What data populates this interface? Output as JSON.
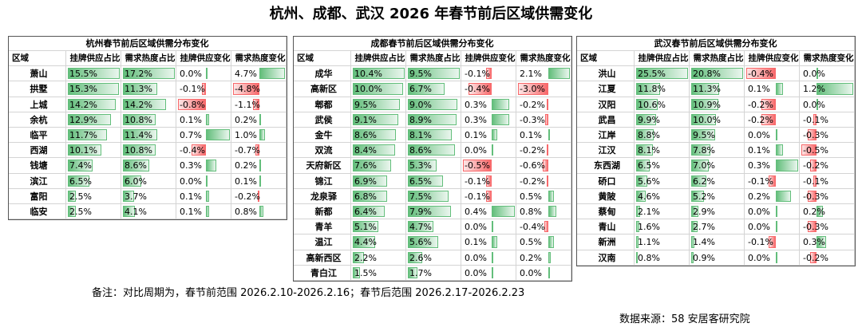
{
  "title": "杭州、成都、武汉 2026 年春节前后区域供需变化",
  "tables": [
    {
      "title": "杭州春节前后区域供需分布变化",
      "headers": [
        "区域",
        "挂牌供应占比",
        "需求热度占比",
        "挂牌供应变化",
        "需求热度变化"
      ],
      "rows": [
        [
          "萧山",
          "15.5%",
          "17.2%",
          "0.0%",
          "4.7%"
        ],
        [
          "拱墅",
          "15.3%",
          "11.3%",
          "-0.1%",
          "-4.8%"
        ],
        [
          "上城",
          "14.2%",
          "14.2%",
          "-0.8%",
          "-1.1%"
        ],
        [
          "余杭",
          "12.9%",
          "10.8%",
          "0.1%",
          "0.2%"
        ],
        [
          "临平",
          "11.7%",
          "11.4%",
          "0.7%",
          "1.0%"
        ],
        [
          "西湖",
          "10.1%",
          "10.8%",
          "-0.4%",
          "-0.7%"
        ],
        [
          "钱塘",
          "7.4%",
          "8.6%",
          "0.3%",
          "0.2%"
        ],
        [
          "滨江",
          "6.5%",
          "6.0%",
          "0.0%",
          "0.1%"
        ],
        [
          "富阳",
          "2.5%",
          "3.7%",
          "0.1%",
          "-0.2%"
        ],
        [
          "临安",
          "2.5%",
          "4.1%",
          "0.1%",
          "0.8%"
        ]
      ]
    },
    {
      "title": "成都春节前后区域供需分布变化",
      "headers": [
        "区域",
        "挂牌供应占比",
        "需求热度占比",
        "挂牌供应变化",
        "需求热度变化"
      ],
      "rows": [
        [
          "成华",
          "10.4%",
          "9.5%",
          "-0.1%",
          "2.1%"
        ],
        [
          "高新区",
          "10.0%",
          "6.7%",
          "-0.4%",
          "-3.0%"
        ],
        [
          "郫都",
          "9.5%",
          "9.0%",
          "0.3%",
          "-0.2%"
        ],
        [
          "武侯",
          "9.1%",
          "8.9%",
          "0.3%",
          "-0.3%"
        ],
        [
          "金牛",
          "8.6%",
          "8.1%",
          "0.1%",
          "0.1%"
        ],
        [
          "双流",
          "8.4%",
          "8.6%",
          "0.0%",
          "-0.2%"
        ],
        [
          "天府新区",
          "7.6%",
          "5.3%",
          "-0.5%",
          "-0.6%"
        ],
        [
          "锦江",
          "6.9%",
          "6.5%",
          "-0.1%",
          "-0.2%"
        ],
        [
          "龙泉驿",
          "6.8%",
          "7.5%",
          "-0.1%",
          "0.5%"
        ],
        [
          "新都",
          "6.4%",
          "7.9%",
          "0.4%",
          "0.8%"
        ],
        [
          "青羊",
          "5.1%",
          "4.7%",
          "0.0%",
          "-0.4%"
        ],
        [
          "温江",
          "4.4%",
          "5.6%",
          "0.1%",
          "0.5%"
        ],
        [
          "高新西区",
          "2.2%",
          "2.6%",
          "0.0%",
          "0.2%"
        ],
        [
          "青白江",
          "1.5%",
          "1.7%",
          "0.0%",
          "0.0%"
        ]
      ]
    },
    {
      "title": "武汉春节前后区域供需分布变化",
      "headers": [
        "区域",
        "挂牌供应占比",
        "需求热度占比",
        "挂牌供应变化",
        "需求热度变化"
      ],
      "rows": [
        [
          "洪山",
          "25.5%",
          "20.8%",
          "-0.4%",
          "0.0%"
        ],
        [
          "江夏",
          "11.8%",
          "11.3%",
          "0.1%",
          "1.2%"
        ],
        [
          "汉阳",
          "10.6%",
          "10.9%",
          "-0.2%",
          "0.0%"
        ],
        [
          "武昌",
          "9.9%",
          "10.0%",
          "-0.2%",
          "-0.1%"
        ],
        [
          "江岸",
          "8.8%",
          "9.5%",
          "0.0%",
          "-0.3%"
        ],
        [
          "江汉",
          "8.1%",
          "7.8%",
          "0.1%",
          "-0.5%"
        ],
        [
          "东西湖",
          "6.5%",
          "7.0%",
          "0.3%",
          "-0.2%"
        ],
        [
          "硚口",
          "5.6%",
          "6.2%",
          "-0.1%",
          "-0.1%"
        ],
        [
          "黄陂",
          "4.6%",
          "5.2%",
          "0.2%",
          "-0.3%"
        ],
        [
          "蔡甸",
          "2.1%",
          "2.9%",
          "0.0%",
          "0.2%"
        ],
        [
          "青山",
          "1.6%",
          "2.7%",
          "0.0%",
          "-0.3%"
        ],
        [
          "新洲",
          "1.1%",
          "1.4%",
          "-0.1%",
          "0.3%"
        ],
        [
          "汉南",
          "0.8%",
          "0.9%",
          "0.0%",
          "-0.2%"
        ]
      ]
    }
  ],
  "note": "备注：对比周期为，春节前范围 2026.2.10-2026.2.16；春节后范围 2026.2.17-2026.2.23",
  "source": "数据来源：58 安居客研究院"
}
